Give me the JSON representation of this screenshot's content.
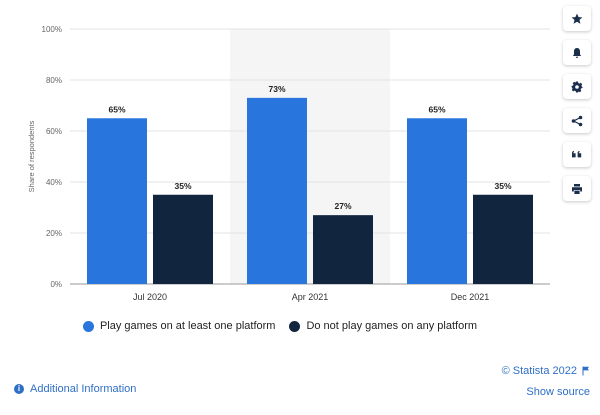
{
  "chart_data": {
    "type": "bar",
    "categories": [
      "Jul 2020",
      "Apr 2021",
      "Dec 2021"
    ],
    "series": [
      {
        "name": "Play games on at least one platform",
        "values": [
          65,
          73,
          65
        ],
        "color": "#2876dd"
      },
      {
        "name": "Do not play games on any platform",
        "values": [
          35,
          27,
          35
        ],
        "color": "#12253f"
      }
    ],
    "data_labels": [
      [
        "65%",
        "73%",
        "65%"
      ],
      [
        "35%",
        "27%",
        "35%"
      ]
    ],
    "ylabel": "Share of respondents",
    "xlabel": "",
    "ylim": [
      0,
      100
    ],
    "yticks": [
      0,
      20,
      40,
      60,
      80,
      100
    ],
    "ytick_labels": [
      "0%",
      "20%",
      "40%",
      "60%",
      "80%",
      "100%"
    ],
    "highlighted_category": "Apr 2021",
    "grid": true,
    "legend_position": "bottom"
  },
  "legend": {
    "items": [
      {
        "label": "Play games on at least one platform",
        "color": "#2876dd"
      },
      {
        "label": "Do not play games on any platform",
        "color": "#12253f"
      }
    ]
  },
  "toolbar": {
    "buttons": [
      {
        "icon": "star-icon"
      },
      {
        "icon": "bell-icon"
      },
      {
        "icon": "gear-icon"
      },
      {
        "icon": "share-icon"
      },
      {
        "icon": "quote-icon"
      },
      {
        "icon": "print-icon"
      }
    ]
  },
  "footer": {
    "copyright": "© Statista 2022",
    "show_source": "Show source",
    "additional_info": "Additional Information"
  },
  "colors": {
    "accent": "#2f6fc6",
    "highlight_band": "#f5f5f5"
  }
}
